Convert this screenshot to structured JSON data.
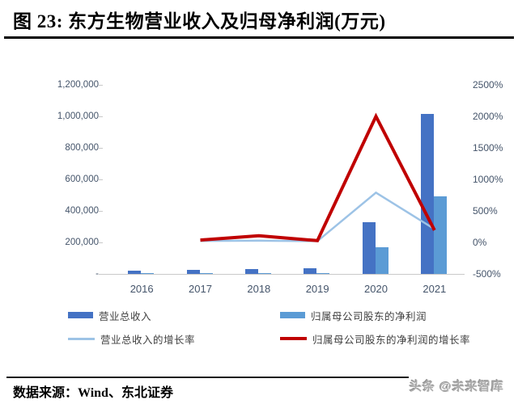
{
  "page": {
    "title": "图 23: 东方生物营业收入及归母净利润(万元)",
    "source_label": "数据来源：Wind、东北证券",
    "watermark": "头条 @未来智库"
  },
  "colors": {
    "axis_text": "#44546A",
    "legend_text": "#404040",
    "axis_line": "#C9C9C9",
    "title_text": "#000000",
    "watermark_text": "#ABABAB"
  },
  "chart_data": {
    "type": "bar",
    "subtype": "bar-line-combo",
    "title": "东方生物营业收入及归母净利润(万元)",
    "categories": [
      "2016",
      "2017",
      "2018",
      "2019",
      "2020",
      "2021"
    ],
    "series": [
      {
        "name": "营业总收入",
        "type": "bar",
        "axis": "left",
        "unit": "万元",
        "color": "#4472C4",
        "values": [
          19400,
          23900,
          30400,
          36700,
          326500,
          1016900
        ]
      },
      {
        "name": "归属母公司股东的净利润",
        "type": "bar",
        "axis": "left",
        "unit": "万元",
        "color": "#5B9BD5",
        "values": [
          3000,
          4500,
          6000,
          7900,
          167700,
          490600
        ]
      },
      {
        "name": "营业总收入的增长率",
        "type": "line",
        "axis": "right",
        "unit": "%",
        "color": "#9DC3E6",
        "values": [
          null,
          23,
          27,
          21,
          790,
          211
        ]
      },
      {
        "name": "归属母公司股东的净利润的增长率",
        "type": "line",
        "axis": "right",
        "unit": "%",
        "color": "#C00000",
        "values": [
          null,
          37,
          105,
          28,
          2000,
          193
        ]
      }
    ],
    "left_axis": {
      "min": 0,
      "max": 1200000,
      "tick_labels": [
        "1,200,000",
        "1,000,000",
        "800,000",
        "600,000",
        "400,000",
        "200,000",
        "-"
      ]
    },
    "right_axis": {
      "min": -500,
      "max": 2500,
      "tick_labels": [
        "2500%",
        "2000%",
        "1500%",
        "1000%",
        "500%",
        "0%",
        "-500%"
      ]
    },
    "grid": false,
    "legend_position": "bottom"
  }
}
